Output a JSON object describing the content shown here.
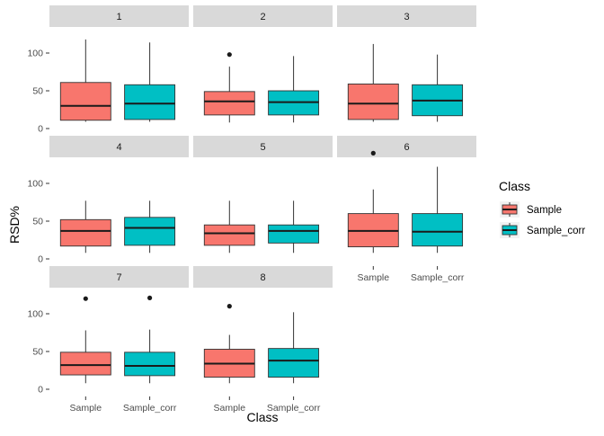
{
  "chart_data": {
    "type": "boxplot",
    "facet": "panel",
    "xlabel": "Class",
    "ylabel": "RSD%",
    "categories": [
      "Sample",
      "Sample_corr"
    ],
    "ylim": [
      0,
      125
    ],
    "yticks": [
      0,
      50,
      100
    ],
    "legend": {
      "title": "Class",
      "position": "right",
      "entries": [
        {
          "label": "Sample",
          "color": "#F8766D"
        },
        {
          "label": "Sample_corr",
          "color": "#00BFC4"
        }
      ]
    },
    "panels": [
      {
        "label": "1",
        "boxes": [
          {
            "category": "Sample",
            "min": 9,
            "q1": 11,
            "median": 30,
            "q3": 61,
            "max": 118,
            "outliers": []
          },
          {
            "category": "Sample_corr",
            "min": 9,
            "q1": 12,
            "median": 33,
            "q3": 58,
            "max": 114,
            "outliers": []
          }
        ]
      },
      {
        "label": "2",
        "boxes": [
          {
            "category": "Sample",
            "min": 8,
            "q1": 18,
            "median": 36,
            "q3": 49,
            "max": 82,
            "outliers": [
              98
            ]
          },
          {
            "category": "Sample_corr",
            "min": 8,
            "q1": 18,
            "median": 35,
            "q3": 50,
            "max": 96,
            "outliers": []
          }
        ]
      },
      {
        "label": "3",
        "boxes": [
          {
            "category": "Sample",
            "min": 9,
            "q1": 12,
            "median": 33,
            "q3": 59,
            "max": 112,
            "outliers": []
          },
          {
            "category": "Sample_corr",
            "min": 9,
            "q1": 17,
            "median": 37,
            "q3": 58,
            "max": 98,
            "outliers": []
          }
        ]
      },
      {
        "label": "4",
        "boxes": [
          {
            "category": "Sample",
            "min": 8,
            "q1": 17,
            "median": 37,
            "q3": 52,
            "max": 77,
            "outliers": []
          },
          {
            "category": "Sample_corr",
            "min": 8,
            "q1": 18,
            "median": 41,
            "q3": 55,
            "max": 77,
            "outliers": []
          }
        ]
      },
      {
        "label": "5",
        "boxes": [
          {
            "category": "Sample",
            "min": 8,
            "q1": 18,
            "median": 34,
            "q3": 45,
            "max": 77,
            "outliers": []
          },
          {
            "category": "Sample_corr",
            "min": 8,
            "q1": 21,
            "median": 37,
            "q3": 45,
            "max": 77,
            "outliers": []
          }
        ]
      },
      {
        "label": "6",
        "boxes": [
          {
            "category": "Sample",
            "min": 8,
            "q1": 16,
            "median": 37,
            "q3": 60,
            "max": 92,
            "outliers": [
              140
            ]
          },
          {
            "category": "Sample_corr",
            "min": 8,
            "q1": 17,
            "median": 36,
            "q3": 60,
            "max": 122,
            "outliers": []
          }
        ]
      },
      {
        "label": "7",
        "boxes": [
          {
            "category": "Sample",
            "min": 8,
            "q1": 19,
            "median": 32,
            "q3": 49,
            "max": 78,
            "outliers": [
              120
            ]
          },
          {
            "category": "Sample_corr",
            "min": 8,
            "q1": 18,
            "median": 31,
            "q3": 49,
            "max": 79,
            "outliers": [
              121
            ]
          }
        ]
      },
      {
        "label": "8",
        "boxes": [
          {
            "category": "Sample",
            "min": 8,
            "q1": 16,
            "median": 34,
            "q3": 53,
            "max": 72,
            "outliers": [
              110
            ]
          },
          {
            "category": "Sample_corr",
            "min": 8,
            "q1": 16,
            "median": 38,
            "q3": 54,
            "max": 102,
            "outliers": []
          }
        ]
      }
    ]
  }
}
